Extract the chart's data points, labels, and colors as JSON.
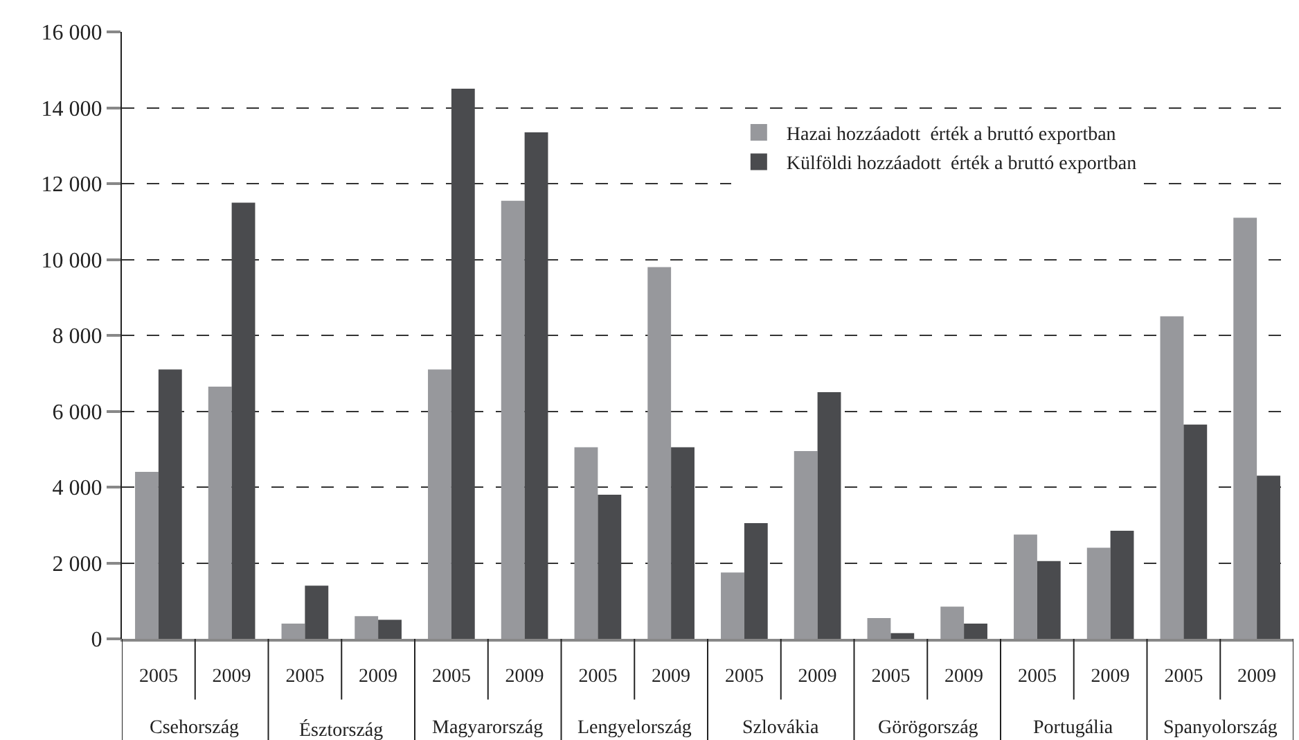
{
  "chart_data": {
    "type": "bar",
    "categories": [
      "2005",
      "2009",
      "2005",
      "2009",
      "2005",
      "2009",
      "2005",
      "2009",
      "2005",
      "2009",
      "2005",
      "2009",
      "2005",
      "2009",
      "2005",
      "2009"
    ],
    "series": [
      {
        "name": "Hazai hozzáadott  érték a bruttó exportban",
        "color": "#97989c",
        "values": [
          4400,
          6650,
          400,
          600,
          7100,
          11550,
          5050,
          9800,
          1750,
          4950,
          550,
          850,
          2750,
          2400,
          8500,
          11100
        ]
      },
      {
        "name": "Külföldi hozzáadott  érték a bruttó exportban",
        "color": "#4a4b4e",
        "values": [
          7100,
          11500,
          1400,
          500,
          14500,
          13350,
          3800,
          5050,
          3050,
          6500,
          150,
          400,
          2050,
          2850,
          5650,
          4300
        ]
      }
    ],
    "annotations": [
      "Csehország",
      "Észtország",
      "Magyarország",
      "Lengyelország",
      "Szlovákia",
      "Görögország",
      "Portugália",
      "Spanyolország"
    ],
    "ylim": [
      0,
      16000
    ],
    "yticks": [
      {
        "value": 0,
        "label": "0"
      },
      {
        "value": 2000,
        "label": "2 000"
      },
      {
        "value": 4000,
        "label": "4 000"
      },
      {
        "value": 6000,
        "label": "6 000"
      },
      {
        "value": 8000,
        "label": "8 000"
      },
      {
        "value": 10000,
        "label": "10 000"
      },
      {
        "value": 12000,
        "label": "12 000"
      },
      {
        "value": 14000,
        "label": "14 000"
      },
      {
        "value": 16000,
        "label": "16 000"
      }
    ],
    "grid": "y",
    "line_style": "dashed",
    "legend": "top right"
  }
}
